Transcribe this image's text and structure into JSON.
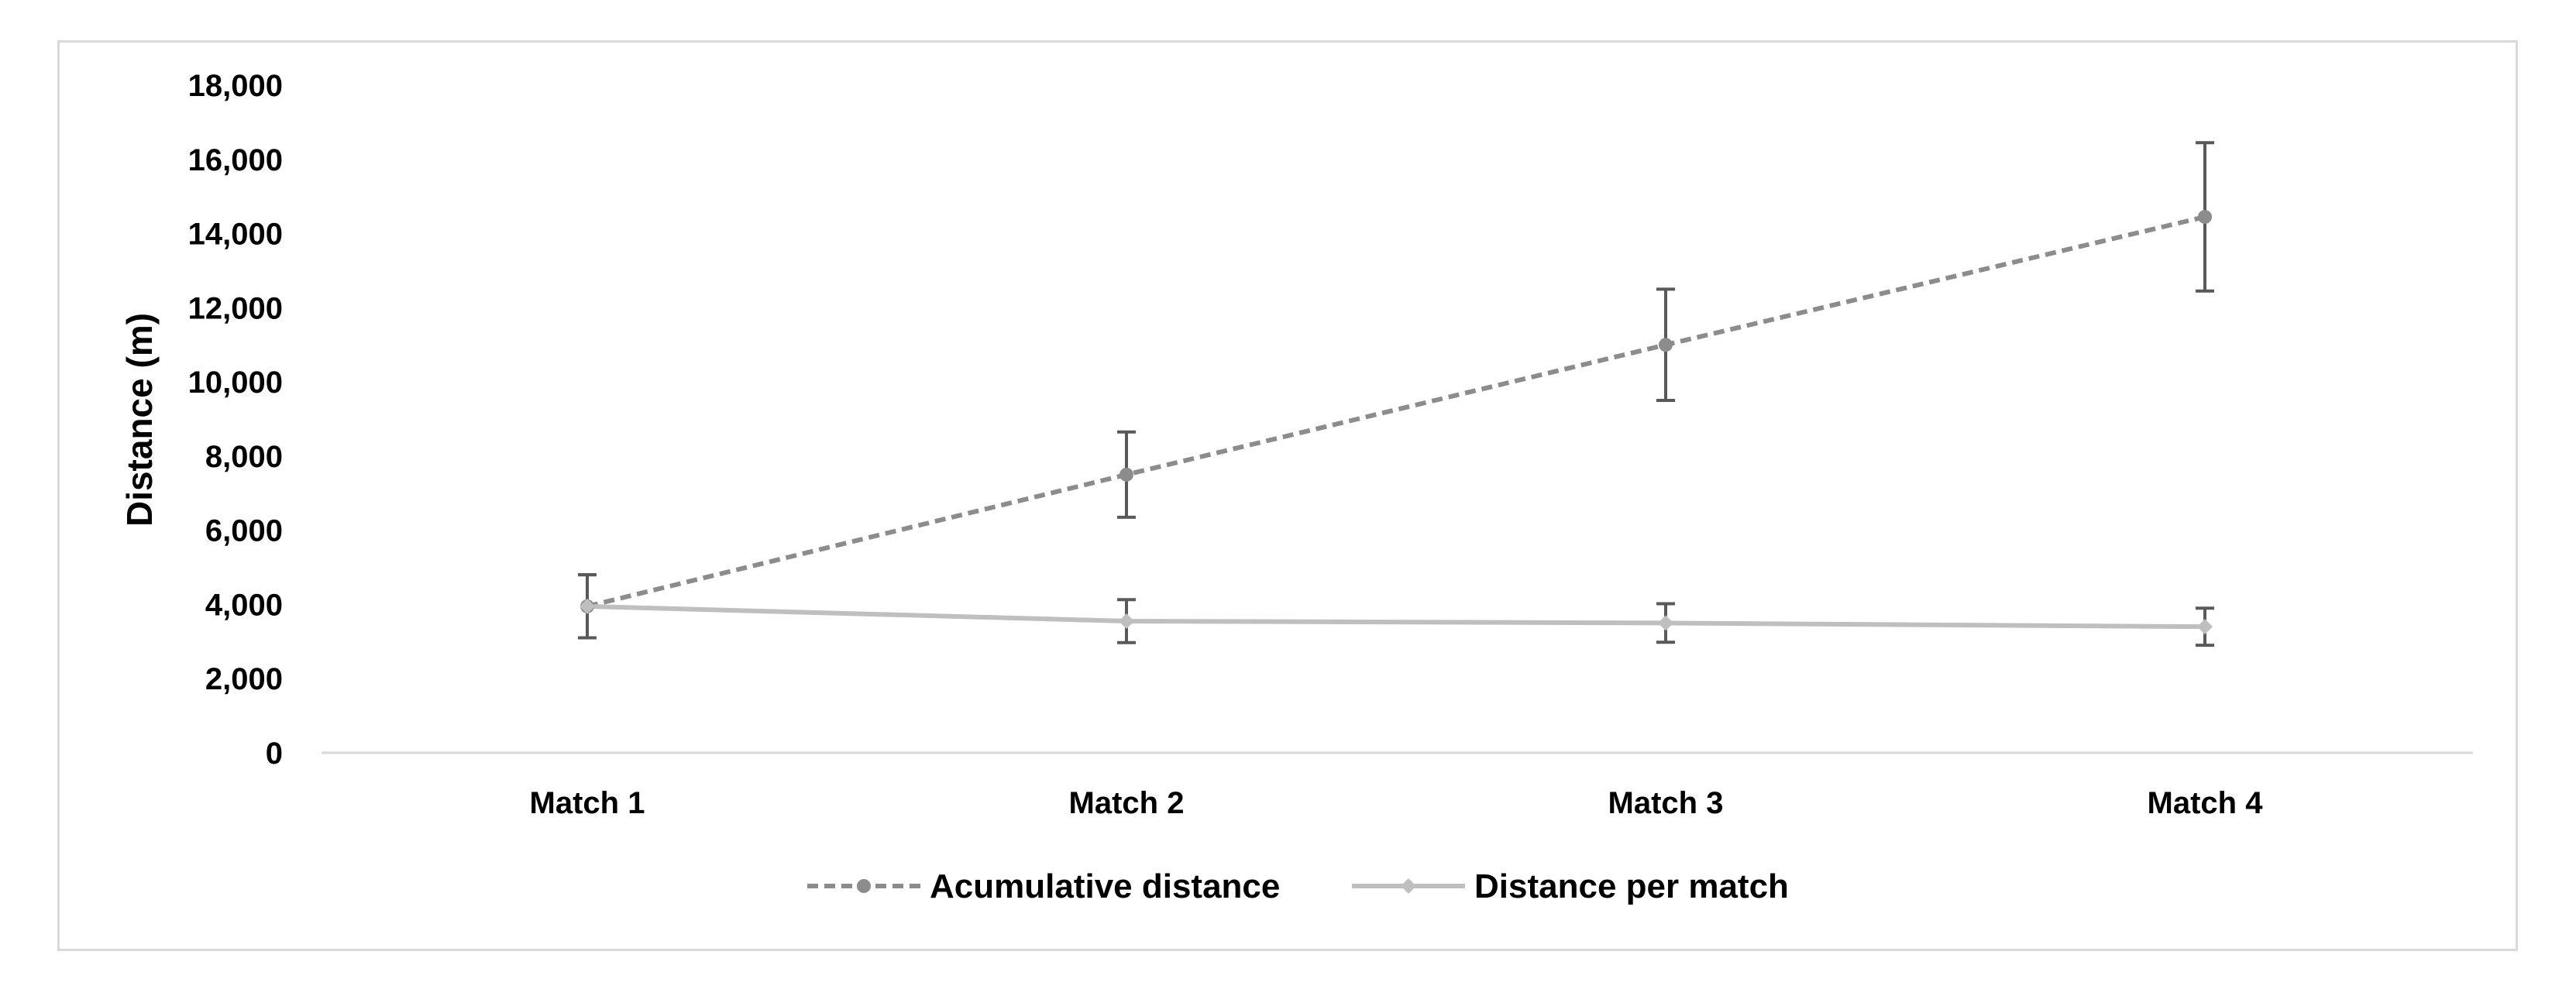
{
  "chart_data": {
    "type": "line",
    "title": "",
    "xlabel": "",
    "ylabel": "Distance (m)",
    "categories": [
      "Match 1",
      "Match 2",
      "Match 3",
      "Match 4"
    ],
    "ylim": [
      0,
      18000
    ],
    "yticks": [
      0,
      2000,
      4000,
      6000,
      8000,
      10000,
      12000,
      14000,
      16000,
      18000
    ],
    "ytick_labels": [
      "0",
      "2,000",
      "4,000",
      "6,000",
      "8,000",
      "10,000",
      "12,000",
      "14,000",
      "16,000",
      "18,000"
    ],
    "grid": false,
    "legend_position": "bottom",
    "series": [
      {
        "name": "Acumulative distance",
        "style": "dashed",
        "marker": "circle",
        "color": "#8c8c8c",
        "values": [
          3950,
          7500,
          11000,
          14450
        ],
        "error": [
          850,
          1150,
          1500,
          2000
        ]
      },
      {
        "name": "Distance per match",
        "style": "solid",
        "marker": "diamond",
        "color": "#bfbfbf",
        "values": [
          3950,
          3550,
          3500,
          3400
        ],
        "error": [
          850,
          580,
          520,
          500
        ]
      }
    ],
    "errorbar_color": "#595959"
  }
}
